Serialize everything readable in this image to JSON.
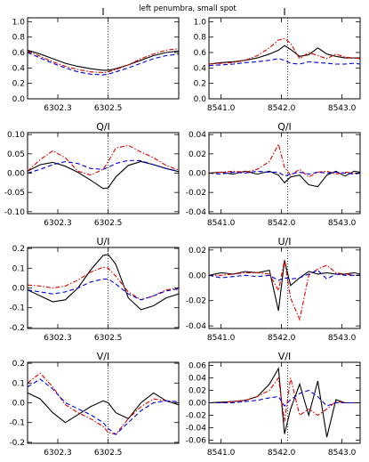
{
  "figure": {
    "suptitle": "left penumbra, small spot",
    "line_colors": {
      "solid": "#000000",
      "dash_dot": "#dd0000",
      "dashed": "#0000dd"
    }
  },
  "chart_data": [
    {
      "type": "line",
      "title": "I",
      "ylim": [
        0,
        1.05
      ],
      "xlim": [
        6302.18,
        6302.78
      ],
      "yticks": [
        "0.0",
        "0.2",
        "0.4",
        "0.6",
        "0.8",
        "1.0"
      ],
      "yticks_values": [
        0,
        0.2,
        0.4,
        0.6,
        0.8,
        1.0
      ],
      "xticks": [
        "6302.3",
        "6302.5"
      ],
      "xticks_values": [
        6302.3,
        6302.5
      ],
      "vline": 6302.5,
      "x": [
        6302.18,
        6302.23,
        6302.28,
        6302.33,
        6302.38,
        6302.43,
        6302.48,
        6302.5,
        6302.53,
        6302.58,
        6302.63,
        6302.68,
        6302.73,
        6302.78
      ],
      "series": [
        {
          "style": "solid",
          "values": [
            0.63,
            0.58,
            0.52,
            0.46,
            0.42,
            0.39,
            0.37,
            0.37,
            0.39,
            0.44,
            0.5,
            0.56,
            0.6,
            0.62
          ]
        },
        {
          "style": "dash_dot",
          "values": [
            0.62,
            0.55,
            0.48,
            0.42,
            0.38,
            0.35,
            0.34,
            0.35,
            0.38,
            0.44,
            0.52,
            0.58,
            0.63,
            0.65
          ]
        },
        {
          "style": "dashed",
          "values": [
            0.6,
            0.53,
            0.46,
            0.4,
            0.35,
            0.32,
            0.31,
            0.32,
            0.35,
            0.4,
            0.46,
            0.52,
            0.56,
            0.58
          ]
        }
      ]
    },
    {
      "type": "line",
      "title": "I",
      "ylim": [
        0,
        1.05
      ],
      "xlim": [
        8540.8,
        8543.3
      ],
      "yticks": [
        "0.0",
        "0.2",
        "0.4",
        "0.6",
        "0.8",
        "1.0"
      ],
      "yticks_values": [
        0,
        0.2,
        0.4,
        0.6,
        0.8,
        1.0
      ],
      "xticks": [
        "8541.0",
        "8542.0",
        "8543.0"
      ],
      "xticks_values": [
        8541.0,
        8542.0,
        8543.0
      ],
      "vline": 8542.1,
      "x": [
        8540.8,
        8541.0,
        8541.2,
        8541.4,
        8541.6,
        8541.8,
        8541.95,
        8542.05,
        8542.15,
        8542.3,
        8542.45,
        8542.6,
        8542.75,
        8542.9,
        8543.05,
        8543.2,
        8543.3
      ],
      "series": [
        {
          "style": "solid",
          "values": [
            0.45,
            0.47,
            0.48,
            0.5,
            0.53,
            0.58,
            0.63,
            0.69,
            0.64,
            0.55,
            0.57,
            0.66,
            0.58,
            0.55,
            0.53,
            0.53,
            0.53
          ]
        },
        {
          "style": "dash_dot",
          "values": [
            0.45,
            0.46,
            0.47,
            0.5,
            0.56,
            0.66,
            0.76,
            0.78,
            0.72,
            0.52,
            0.6,
            0.56,
            0.52,
            0.58,
            0.54,
            0.53,
            0.52
          ]
        },
        {
          "style": "dashed",
          "values": [
            0.43,
            0.44,
            0.45,
            0.47,
            0.48,
            0.5,
            0.52,
            0.5,
            0.46,
            0.45,
            0.48,
            0.47,
            0.46,
            0.45,
            0.45,
            0.46,
            0.45
          ]
        }
      ]
    },
    {
      "type": "line",
      "title": "Q/I",
      "ylim": [
        -0.105,
        0.105
      ],
      "xlim": [
        6302.18,
        6302.78
      ],
      "yticks": [
        "-0.10",
        "-0.05",
        "0.00",
        "0.05",
        "0.10"
      ],
      "yticks_values": [
        -0.1,
        -0.05,
        0,
        0.05,
        0.1
      ],
      "xticks": [
        "6302.3",
        "6302.5"
      ],
      "xticks_values": [
        6302.3,
        6302.5
      ],
      "vline": 6302.5,
      "x": [
        6302.18,
        6302.23,
        6302.28,
        6302.33,
        6302.38,
        6302.43,
        6302.48,
        6302.5,
        6302.53,
        6302.58,
        6302.63,
        6302.68,
        6302.73,
        6302.78
      ],
      "series": [
        {
          "style": "solid",
          "values": [
            0.005,
            0.022,
            0.028,
            0.018,
            0.002,
            -0.018,
            -0.04,
            -0.038,
            -0.01,
            0.02,
            0.03,
            0.022,
            0.012,
            0.004
          ]
        },
        {
          "style": "dash_dot",
          "values": [
            0.005,
            0.035,
            0.058,
            0.04,
            0.005,
            -0.005,
            0.01,
            0.03,
            0.065,
            0.072,
            0.055,
            0.04,
            0.02,
            0.008
          ]
        },
        {
          "style": "dashed",
          "values": [
            0.0,
            0.01,
            0.022,
            0.03,
            0.025,
            0.012,
            0.01,
            0.015,
            0.025,
            0.033,
            0.032,
            0.022,
            0.012,
            0.005
          ]
        }
      ]
    },
    {
      "type": "line",
      "title": "Q/I",
      "ylim": [
        -0.042,
        0.042
      ],
      "xlim": [
        8540.8,
        8543.3
      ],
      "yticks": [
        "-0.04",
        "-0.02",
        "0.00",
        "0.02",
        "0.04"
      ],
      "yticks_values": [
        -0.04,
        -0.02,
        0,
        0.02,
        0.04
      ],
      "xticks": [
        "8541.0",
        "8542.0",
        "8543.0"
      ],
      "xticks_values": [
        8541.0,
        8542.0,
        8543.0
      ],
      "vline": 8542.1,
      "x": [
        8540.8,
        8541.0,
        8541.2,
        8541.4,
        8541.6,
        8541.8,
        8541.95,
        8542.05,
        8542.15,
        8542.3,
        8542.45,
        8542.6,
        8542.75,
        8542.9,
        8543.05,
        8543.2,
        8543.3
      ],
      "series": [
        {
          "style": "solid",
          "values": [
            0.0,
            0.001,
            -0.001,
            0.002,
            -0.001,
            0.002,
            -0.002,
            -0.01,
            -0.004,
            -0.002,
            -0.012,
            -0.014,
            -0.002,
            0.002,
            -0.003,
            0.002,
            0.001
          ]
        },
        {
          "style": "dash_dot",
          "values": [
            0.0,
            0.001,
            0.002,
            0.001,
            0.004,
            0.012,
            0.03,
            0.006,
            -0.002,
            0.004,
            -0.004,
            0.001,
            0.002,
            -0.001,
            0.001,
            0.0,
            0.0
          ]
        },
        {
          "style": "dashed",
          "values": [
            0.0,
            -0.001,
            0.001,
            0.0,
            0.002,
            0.001,
            0.001,
            -0.003,
            -0.001,
            0.001,
            -0.001,
            0.001,
            0.0,
            0.001,
            0.0,
            -0.001,
            0.0
          ]
        }
      ]
    },
    {
      "type": "line",
      "title": "U/I",
      "ylim": [
        -0.205,
        0.205
      ],
      "xlim": [
        6302.18,
        6302.78
      ],
      "yticks": [
        "-0.2",
        "-0.1",
        "0.0",
        "0.1",
        "0.2"
      ],
      "yticks_values": [
        -0.2,
        -0.1,
        0,
        0.1,
        0.2
      ],
      "xticks": [
        "6302.3",
        "6302.5"
      ],
      "xticks_values": [
        6302.3,
        6302.5
      ],
      "vline": 6302.5,
      "x": [
        6302.18,
        6302.23,
        6302.28,
        6302.33,
        6302.38,
        6302.43,
        6302.48,
        6302.5,
        6302.53,
        6302.58,
        6302.63,
        6302.68,
        6302.73,
        6302.78
      ],
      "series": [
        {
          "style": "solid",
          "values": [
            -0.01,
            -0.04,
            -0.07,
            -0.06,
            0.0,
            0.09,
            0.165,
            0.17,
            0.12,
            -0.05,
            -0.11,
            -0.09,
            -0.05,
            -0.03
          ]
        },
        {
          "style": "dash_dot",
          "values": [
            0.015,
            0.01,
            0.0,
            0.01,
            0.04,
            0.08,
            0.105,
            0.1,
            0.06,
            -0.02,
            -0.06,
            -0.04,
            -0.01,
            0.0
          ]
        },
        {
          "style": "dashed",
          "values": [
            -0.01,
            -0.02,
            -0.03,
            -0.02,
            0.0,
            0.03,
            0.045,
            0.045,
            0.02,
            -0.03,
            -0.06,
            -0.04,
            -0.015,
            -0.005
          ]
        }
      ]
    },
    {
      "type": "line",
      "title": "U/I",
      "ylim": [
        -0.042,
        0.022
      ],
      "xlim": [
        8540.8,
        8543.3
      ],
      "yticks": [
        "-0.04",
        "-0.02",
        "0.00",
        "0.02"
      ],
      "yticks_values": [
        -0.04,
        -0.02,
        0,
        0.02
      ],
      "xticks": [
        "8541.0",
        "8542.0",
        "8543.0"
      ],
      "xticks_values": [
        8541.0,
        8542.0,
        8543.0
      ],
      "vline": 8542.1,
      "x": [
        8540.8,
        8541.0,
        8541.2,
        8541.4,
        8541.6,
        8541.8,
        8541.95,
        8542.05,
        8542.15,
        8542.3,
        8542.45,
        8542.6,
        8542.75,
        8542.9,
        8543.05,
        8543.2,
        8543.3
      ],
      "series": [
        {
          "style": "solid",
          "values": [
            0.0,
            0.002,
            0.001,
            0.003,
            0.002,
            0.004,
            -0.028,
            0.012,
            -0.008,
            -0.002,
            0.003,
            0.001,
            0.002,
            0.001,
            0.001,
            0.002,
            0.001
          ]
        },
        {
          "style": "dash_dot",
          "values": [
            0.0,
            0.0,
            0.001,
            0.002,
            0.002,
            0.001,
            -0.012,
            0.012,
            -0.018,
            -0.035,
            0.0,
            0.005,
            0.008,
            0.002,
            0.001,
            0.0,
            0.0
          ]
        },
        {
          "style": "dashed",
          "values": [
            0.0,
            -0.002,
            -0.001,
            0.0,
            -0.001,
            0.0,
            -0.004,
            -0.002,
            -0.003,
            -0.002,
            0.001,
            0.004,
            -0.003,
            0.001,
            0.0,
            0.0,
            0.0
          ]
        }
      ]
    },
    {
      "type": "line",
      "title": "V/I",
      "ylim": [
        -0.205,
        0.205
      ],
      "xlim": [
        6302.18,
        6302.78
      ],
      "yticks": [
        "-0.2",
        "-0.1",
        "0.0",
        "0.1",
        "0.2"
      ],
      "yticks_values": [
        -0.2,
        -0.1,
        0,
        0.1,
        0.2
      ],
      "xticks": [
        "6302.3",
        "6302.5"
      ],
      "xticks_values": [
        6302.3,
        6302.5
      ],
      "vline": 6302.5,
      "x": [
        6302.18,
        6302.23,
        6302.28,
        6302.33,
        6302.38,
        6302.43,
        6302.48,
        6302.5,
        6302.53,
        6302.58,
        6302.63,
        6302.68,
        6302.73,
        6302.78
      ],
      "series": [
        {
          "style": "solid",
          "values": [
            0.05,
            0.02,
            -0.05,
            -0.1,
            -0.06,
            -0.02,
            0.01,
            0.0,
            -0.05,
            -0.08,
            0.0,
            0.05,
            0.01,
            -0.01
          ]
        },
        {
          "style": "dash_dot",
          "values": [
            0.1,
            0.15,
            0.08,
            -0.01,
            -0.05,
            -0.08,
            -0.12,
            -0.15,
            -0.16,
            -0.08,
            -0.02,
            0.02,
            0.01,
            0.005
          ]
        },
        {
          "style": "dashed",
          "values": [
            0.08,
            0.12,
            0.07,
            0.0,
            -0.03,
            -0.06,
            -0.1,
            -0.13,
            -0.16,
            -0.1,
            -0.04,
            0.0,
            0.01,
            0.005
          ]
        }
      ]
    },
    {
      "type": "line",
      "title": "V/I",
      "ylim": [
        -0.065,
        0.065
      ],
      "xlim": [
        8540.8,
        8543.3
      ],
      "yticks": [
        "-0.06",
        "-0.04",
        "-0.02",
        "0.00",
        "0.02",
        "0.04",
        "0.06"
      ],
      "yticks_values": [
        -0.06,
        -0.04,
        -0.02,
        0,
        0.02,
        0.04,
        0.06
      ],
      "xticks": [
        "8541.0",
        "8542.0",
        "8543.0"
      ],
      "xticks_values": [
        8541.0,
        8542.0,
        8543.0
      ],
      "vline": 8542.1,
      "x": [
        8540.8,
        8541.0,
        8541.2,
        8541.4,
        8541.6,
        8541.8,
        8541.95,
        8542.05,
        8542.15,
        8542.3,
        8542.45,
        8542.6,
        8542.75,
        8542.9,
        8543.05,
        8543.2,
        8543.3
      ],
      "series": [
        {
          "style": "solid",
          "values": [
            0.0,
            0.001,
            0.002,
            0.004,
            0.01,
            0.03,
            0.055,
            -0.05,
            -0.01,
            0.03,
            -0.02,
            0.035,
            -0.055,
            0.005,
            0.0,
            0.0,
            0.0
          ]
        },
        {
          "style": "dash_dot",
          "values": [
            0.0,
            0.0,
            0.002,
            0.004,
            0.01,
            0.02,
            0.04,
            -0.03,
            0.04,
            -0.02,
            -0.01,
            -0.02,
            -0.01,
            0.002,
            0.0,
            0.0,
            0.0
          ]
        },
        {
          "style": "dashed",
          "values": [
            0.0,
            0.0,
            0.0,
            0.002,
            0.004,
            0.008,
            0.01,
            -0.005,
            0.005,
            0.015,
            0.02,
            0.01,
            -0.005,
            0.0,
            0.0,
            0.0,
            0.0
          ]
        }
      ]
    }
  ]
}
